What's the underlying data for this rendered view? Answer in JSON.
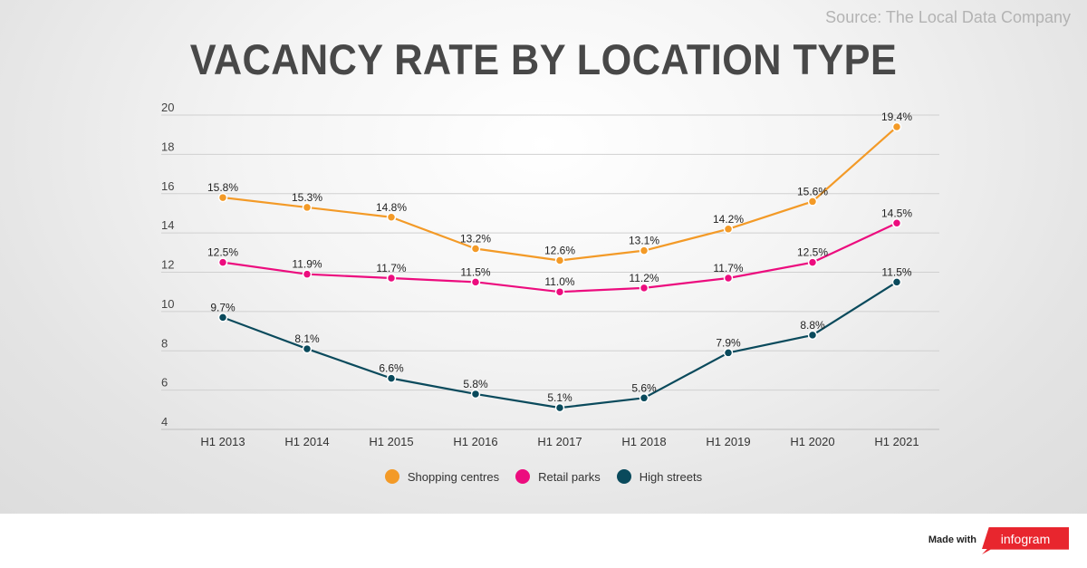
{
  "header": {
    "title": "VACANCY RATE BY LOCATION TYPE",
    "source": "Source: The Local Data Company"
  },
  "footer": {
    "made_with": "Made with",
    "logo_text": "infogram",
    "logo_color": "#e8262e"
  },
  "chart_data": {
    "type": "line",
    "title": "VACANCY RATE BY LOCATION TYPE",
    "xlabel": "",
    "ylabel": "",
    "categories": [
      "H1 2013",
      "H1 2014",
      "H1 2015",
      "H1 2016",
      "H1 2017",
      "H1 2018",
      "H1 2019",
      "H1 2020",
      "H1 2021"
    ],
    "ylim": [
      4,
      20
    ],
    "yticks": [
      4,
      6,
      8,
      10,
      12,
      14,
      16,
      18,
      20
    ],
    "grid": true,
    "legend_position": "bottom",
    "series": [
      {
        "name": "Shopping centres",
        "color": "#f39a27",
        "values": [
          15.8,
          15.3,
          14.8,
          13.2,
          12.6,
          13.1,
          14.2,
          15.6,
          19.4
        ],
        "labels": [
          "15.8%",
          "15.3%",
          "14.8%",
          "13.2%",
          "12.6%",
          "13.1%",
          "14.2%",
          "15.6%",
          "19.4%"
        ]
      },
      {
        "name": "Retail parks",
        "color": "#ec0c7e",
        "values": [
          12.5,
          11.9,
          11.7,
          11.5,
          11.0,
          11.2,
          11.7,
          12.5,
          14.5
        ],
        "labels": [
          "12.5%",
          "11.9%",
          "11.7%",
          "11.5%",
          "11.0%",
          "11.2%",
          "11.7%",
          "12.5%",
          "14.5%"
        ]
      },
      {
        "name": "High streets",
        "color": "#0a4a5c",
        "values": [
          9.7,
          8.1,
          6.6,
          5.8,
          5.1,
          5.6,
          7.9,
          8.8,
          11.5
        ],
        "labels": [
          "9.7%",
          "8.1%",
          "6.6%",
          "5.8%",
          "5.1%",
          "5.6%",
          "7.9%",
          "8.8%",
          "11.5%"
        ]
      }
    ]
  }
}
